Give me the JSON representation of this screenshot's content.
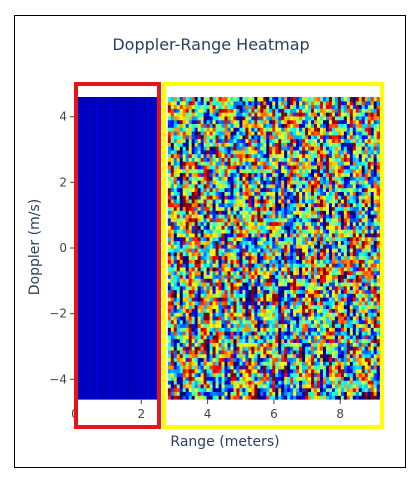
{
  "chart_data": {
    "type": "heatmap",
    "title": "Doppler-Range Heatmap",
    "xlabel": "Range (meters)",
    "ylabel": "Doppler (m/s)",
    "xlim": [
      0,
      9.2
    ],
    "ylim": [
      -4.6,
      4.6
    ],
    "x_ticks": [
      0,
      2,
      4,
      6,
      8
    ],
    "y_ticks": [
      -4,
      -2,
      0,
      2,
      4
    ],
    "x_tick_labels": [
      "0",
      "2",
      "4",
      "6",
      "8"
    ],
    "y_tick_labels": [
      "−4",
      "−2",
      "0",
      "2",
      "4"
    ],
    "colorscale": "jet",
    "regions": [
      {
        "x_range": [
          0,
          2.55
        ],
        "appearance": "uniform low (dark blue)",
        "highlight_color": "#e8141c"
      },
      {
        "x_range": [
          2.8,
          9.2
        ],
        "appearance": "random speckle across full colorscale",
        "highlight_color": "#ffff00"
      }
    ],
    "gap_x_range": [
      2.55,
      2.8
    ]
  }
}
